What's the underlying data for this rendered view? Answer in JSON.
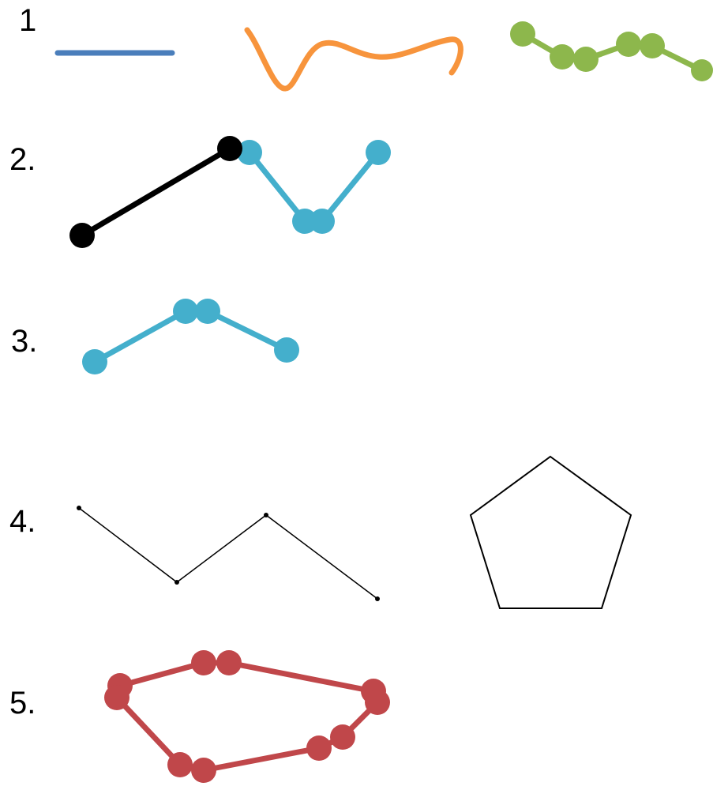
{
  "labels": {
    "row1": "1",
    "row2": "2.",
    "row3": "3.",
    "row4": "4.",
    "row5": "5."
  },
  "colors": {
    "blue_line": "#4a7ebb",
    "orange_curve": "#f7943c",
    "green_polyline": "#8db74c",
    "teal_polyline": "#44afcc",
    "black_segment": "#000000",
    "red_polygon": "#c0474a",
    "outline": "#000000"
  },
  "figures": [
    {
      "row": "1",
      "kind": "line"
    },
    {
      "row": "1",
      "kind": "curve"
    },
    {
      "row": "1",
      "kind": "polyline-with-vertices"
    },
    {
      "row": "2",
      "kind": "two polylines joined at a vertex"
    },
    {
      "row": "3",
      "kind": "polyline-with-vertices"
    },
    {
      "row": "4",
      "kind": "polyline"
    },
    {
      "row": "4",
      "kind": "pentagon"
    },
    {
      "row": "5",
      "kind": "closed polygon with vertices"
    }
  ]
}
